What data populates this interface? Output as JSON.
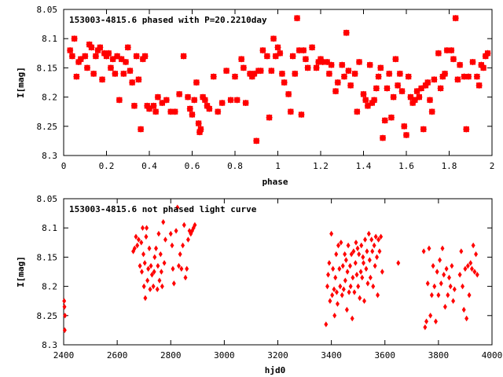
{
  "chart_data": [
    {
      "type": "scatter",
      "title": "153003-4815.6 phased with P=20.2210day",
      "xlabel": "phase",
      "ylabel": "I[mag]",
      "xlim": [
        0,
        2
      ],
      "ylim": [
        8.05,
        8.3
      ],
      "y_inverted": true,
      "xticks": [
        "0",
        "0.2",
        "0.4",
        "0.6",
        "0.8",
        "1",
        "1.2",
        "1.4",
        "1.6",
        "1.8",
        "2"
      ],
      "yticks": [
        "8.05",
        "8.1",
        "8.15",
        "8.2",
        "8.25",
        "8.3"
      ],
      "marker_color": "#ff0000",
      "grid": false,
      "points": [
        [
          0.03,
          8.12
        ],
        [
          0.04,
          8.13
        ],
        [
          0.05,
          8.1
        ],
        [
          0.06,
          8.165
        ],
        [
          0.07,
          8.14
        ],
        [
          0.08,
          8.135
        ],
        [
          0.1,
          8.13
        ],
        [
          0.11,
          8.15
        ],
        [
          0.12,
          8.11
        ],
        [
          0.13,
          8.115
        ],
        [
          0.14,
          8.16
        ],
        [
          0.15,
          8.13
        ],
        [
          0.16,
          8.12
        ],
        [
          0.17,
          8.115
        ],
        [
          0.18,
          8.17
        ],
        [
          0.19,
          8.125
        ],
        [
          0.2,
          8.13
        ],
        [
          0.21,
          8.125
        ],
        [
          0.22,
          8.15
        ],
        [
          0.23,
          8.135
        ],
        [
          0.24,
          8.16
        ],
        [
          0.25,
          8.13
        ],
        [
          0.26,
          8.205
        ],
        [
          0.27,
          8.135
        ],
        [
          0.28,
          8.16
        ],
        [
          0.29,
          8.14
        ],
        [
          0.3,
          8.115
        ],
        [
          0.31,
          8.155
        ],
        [
          0.32,
          8.175
        ],
        [
          0.33,
          8.215
        ],
        [
          0.34,
          8.13
        ],
        [
          0.35,
          8.17
        ],
        [
          0.36,
          8.255
        ],
        [
          0.37,
          8.135
        ],
        [
          0.38,
          8.13
        ],
        [
          0.39,
          8.215
        ],
        [
          0.4,
          8.22
        ],
        [
          0.42,
          8.215
        ],
        [
          0.43,
          8.225
        ],
        [
          0.44,
          8.2
        ],
        [
          0.46,
          8.21
        ],
        [
          0.48,
          8.205
        ],
        [
          0.5,
          8.225
        ],
        [
          0.52,
          8.225
        ],
        [
          0.54,
          8.195
        ],
        [
          0.56,
          8.13
        ],
        [
          0.58,
          8.2
        ],
        [
          0.59,
          8.22
        ],
        [
          0.6,
          8.23
        ],
        [
          0.61,
          8.205
        ],
        [
          0.62,
          8.175
        ],
        [
          0.63,
          8.245
        ],
        [
          0.635,
          8.26
        ],
        [
          0.64,
          8.255
        ],
        [
          0.65,
          8.2
        ],
        [
          0.66,
          8.205
        ],
        [
          0.67,
          8.215
        ],
        [
          0.68,
          8.22
        ],
        [
          0.7,
          8.165
        ],
        [
          0.72,
          8.225
        ],
        [
          0.74,
          8.21
        ],
        [
          0.76,
          8.155
        ],
        [
          0.78,
          8.205
        ],
        [
          0.8,
          8.165
        ],
        [
          0.81,
          8.205
        ],
        [
          0.83,
          8.135
        ],
        [
          0.84,
          8.15
        ],
        [
          0.85,
          8.21
        ],
        [
          0.87,
          8.16
        ],
        [
          0.88,
          8.165
        ],
        [
          0.89,
          8.16
        ],
        [
          0.9,
          8.275
        ],
        [
          0.91,
          8.155
        ],
        [
          0.92,
          8.155
        ],
        [
          0.93,
          8.12
        ],
        [
          0.95,
          8.13
        ],
        [
          0.96,
          8.235
        ],
        [
          0.97,
          8.155
        ],
        [
          0.98,
          8.1
        ],
        [
          0.99,
          8.13
        ],
        [
          1.0,
          8.115
        ],
        [
          1.01,
          8.125
        ],
        [
          1.02,
          8.16
        ],
        [
          1.03,
          8.175
        ],
        [
          1.05,
          8.195
        ],
        [
          1.06,
          8.225
        ],
        [
          1.07,
          8.13
        ],
        [
          1.08,
          8.16
        ],
        [
          1.09,
          8.065
        ],
        [
          1.1,
          8.12
        ],
        [
          1.11,
          8.23
        ],
        [
          1.12,
          8.12
        ],
        [
          1.13,
          8.135
        ],
        [
          1.14,
          8.15
        ],
        [
          1.16,
          8.115
        ],
        [
          1.18,
          8.15
        ],
        [
          1.19,
          8.14
        ],
        [
          1.2,
          8.135
        ],
        [
          1.21,
          8.14
        ],
        [
          1.23,
          8.14
        ],
        [
          1.24,
          8.16
        ],
        [
          1.25,
          8.145
        ],
        [
          1.27,
          8.19
        ],
        [
          1.28,
          8.175
        ],
        [
          1.3,
          8.145
        ],
        [
          1.31,
          8.165
        ],
        [
          1.32,
          8.09
        ],
        [
          1.33,
          8.155
        ],
        [
          1.34,
          8.18
        ],
        [
          1.36,
          8.16
        ],
        [
          1.37,
          8.225
        ],
        [
          1.38,
          8.14
        ],
        [
          1.4,
          8.195
        ],
        [
          1.41,
          8.205
        ],
        [
          1.42,
          8.215
        ],
        [
          1.43,
          8.145
        ],
        [
          1.44,
          8.21
        ],
        [
          1.45,
          8.205
        ],
        [
          1.46,
          8.185
        ],
        [
          1.47,
          8.165
        ],
        [
          1.48,
          8.15
        ],
        [
          1.49,
          8.27
        ],
        [
          1.5,
          8.24
        ],
        [
          1.51,
          8.185
        ],
        [
          1.52,
          8.16
        ],
        [
          1.53,
          8.235
        ],
        [
          1.54,
          8.2
        ],
        [
          1.55,
          8.135
        ],
        [
          1.56,
          8.18
        ],
        [
          1.57,
          8.16
        ],
        [
          1.58,
          8.19
        ],
        [
          1.59,
          8.25
        ],
        [
          1.6,
          8.265
        ],
        [
          1.61,
          8.165
        ],
        [
          1.62,
          8.2
        ],
        [
          1.63,
          8.21
        ],
        [
          1.64,
          8.205
        ],
        [
          1.65,
          8.19
        ],
        [
          1.66,
          8.2
        ],
        [
          1.67,
          8.185
        ],
        [
          1.68,
          8.255
        ],
        [
          1.69,
          8.18
        ],
        [
          1.7,
          8.175
        ],
        [
          1.71,
          8.205
        ],
        [
          1.72,
          8.225
        ],
        [
          1.73,
          8.17
        ],
        [
          1.75,
          8.125
        ],
        [
          1.76,
          8.185
        ],
        [
          1.77,
          8.165
        ],
        [
          1.78,
          8.16
        ],
        [
          1.79,
          8.12
        ],
        [
          1.81,
          8.12
        ],
        [
          1.82,
          8.135
        ],
        [
          1.83,
          8.065
        ],
        [
          1.84,
          8.17
        ],
        [
          1.85,
          8.145
        ],
        [
          1.87,
          8.165
        ],
        [
          1.88,
          8.255
        ],
        [
          1.89,
          8.165
        ],
        [
          1.91,
          8.14
        ],
        [
          1.93,
          8.165
        ],
        [
          1.94,
          8.18
        ],
        [
          1.95,
          8.145
        ],
        [
          1.96,
          8.15
        ],
        [
          1.97,
          8.13
        ],
        [
          1.98,
          8.125
        ]
      ]
    },
    {
      "type": "scatter",
      "title": "153003-4815.6 not phased light curve",
      "xlabel": "hjd0",
      "ylabel": "I[mag]",
      "xlim": [
        2400,
        4000
      ],
      "ylim": [
        8.05,
        8.3
      ],
      "y_inverted": true,
      "xticks": [
        "2400",
        "2600",
        "2800",
        "3000",
        "3200",
        "3400",
        "3600",
        "3800",
        "4000"
      ],
      "yticks": [
        "8.05",
        "8.1",
        "8.15",
        "8.2",
        "8.25",
        "8.3"
      ],
      "marker_color": "#ff0000",
      "grid": false,
      "points": [
        [
          2402,
          8.225
        ],
        [
          2403,
          8.235
        ],
        [
          2404,
          8.275
        ],
        [
          2405,
          8.25
        ],
        [
          2660,
          8.14
        ],
        [
          2665,
          8.135
        ],
        [
          2670,
          8.115
        ],
        [
          2675,
          8.13
        ],
        [
          2680,
          8.12
        ],
        [
          2685,
          8.165
        ],
        [
          2690,
          8.125
        ],
        [
          2692,
          8.175
        ],
        [
          2695,
          8.1
        ],
        [
          2698,
          8.145
        ],
        [
          2700,
          8.2
        ],
        [
          2703,
          8.16
        ],
        [
          2705,
          8.22
        ],
        [
          2708,
          8.115
        ],
        [
          2710,
          8.1
        ],
        [
          2713,
          8.19
        ],
        [
          2716,
          8.17
        ],
        [
          2720,
          8.135
        ],
        [
          2723,
          8.205
        ],
        [
          2726,
          8.165
        ],
        [
          2730,
          8.18
        ],
        [
          2735,
          8.2
        ],
        [
          2738,
          8.175
        ],
        [
          2740,
          8.15
        ],
        [
          2745,
          8.135
        ],
        [
          2750,
          8.205
        ],
        [
          2752,
          8.165
        ],
        [
          2755,
          8.11
        ],
        [
          2758,
          8.19
        ],
        [
          2762,
          8.145
        ],
        [
          2765,
          8.175
        ],
        [
          2768,
          8.2
        ],
        [
          2772,
          8.09
        ],
        [
          2776,
          8.16
        ],
        [
          2780,
          8.12
        ],
        [
          2800,
          8.11
        ],
        [
          2805,
          8.13
        ],
        [
          2808,
          8.17
        ],
        [
          2812,
          8.195
        ],
        [
          2820,
          8.105
        ],
        [
          2825,
          8.065
        ],
        [
          2830,
          8.165
        ],
        [
          2835,
          8.145
        ],
        [
          2840,
          8.17
        ],
        [
          2845,
          8.13
        ],
        [
          2850,
          8.095
        ],
        [
          2855,
          8.185
        ],
        [
          2860,
          8.17
        ],
        [
          2865,
          8.12
        ],
        [
          2870,
          8.105
        ],
        [
          2875,
          8.11
        ],
        [
          2880,
          8.105
        ],
        [
          2885,
          8.1
        ],
        [
          2890,
          8.095
        ],
        [
          3380,
          8.265
        ],
        [
          3385,
          8.2
        ],
        [
          3388,
          8.18
        ],
        [
          3392,
          8.16
        ],
        [
          3395,
          8.225
        ],
        [
          3400,
          8.11
        ],
        [
          3403,
          8.215
        ],
        [
          3406,
          8.17
        ],
        [
          3410,
          8.205
        ],
        [
          3412,
          8.25
        ],
        [
          3415,
          8.185
        ],
        [
          3418,
          8.145
        ],
        [
          3420,
          8.21
        ],
        [
          3423,
          8.23
        ],
        [
          3426,
          8.13
        ],
        [
          3430,
          8.17
        ],
        [
          3433,
          8.2
        ],
        [
          3436,
          8.125
        ],
        [
          3440,
          8.215
        ],
        [
          3443,
          8.165
        ],
        [
          3446,
          8.205
        ],
        [
          3450,
          8.145
        ],
        [
          3452,
          8.19
        ],
        [
          3455,
          8.155
        ],
        [
          3458,
          8.24
        ],
        [
          3460,
          8.175
        ],
        [
          3463,
          8.13
        ],
        [
          3466,
          8.21
        ],
        [
          3470,
          8.165
        ],
        [
          3472,
          8.2
        ],
        [
          3475,
          8.145
        ],
        [
          3478,
          8.255
        ],
        [
          3480,
          8.185
        ],
        [
          3483,
          8.14
        ],
        [
          3486,
          8.21
        ],
        [
          3490,
          8.16
        ],
        [
          3492,
          8.125
        ],
        [
          3495,
          8.18
        ],
        [
          3498,
          8.135
        ],
        [
          3500,
          8.2
        ],
        [
          3503,
          8.145
        ],
        [
          3506,
          8.22
        ],
        [
          3510,
          8.175
        ],
        [
          3512,
          8.13
        ],
        [
          3515,
          8.185
        ],
        [
          3518,
          8.15
        ],
        [
          3520,
          8.16
        ],
        [
          3523,
          8.225
        ],
        [
          3526,
          8.12
        ],
        [
          3530,
          8.17
        ],
        [
          3533,
          8.14
        ],
        [
          3536,
          8.195
        ],
        [
          3540,
          8.11
        ],
        [
          3543,
          8.155
        ],
        [
          3546,
          8.185
        ],
        [
          3550,
          8.12
        ],
        [
          3553,
          8.14
        ],
        [
          3556,
          8.2
        ],
        [
          3560,
          8.13
        ],
        [
          3563,
          8.165
        ],
        [
          3566,
          8.115
        ],
        [
          3570,
          8.15
        ],
        [
          3573,
          8.215
        ],
        [
          3576,
          8.12
        ],
        [
          3580,
          8.14
        ],
        [
          3585,
          8.115
        ],
        [
          3590,
          8.175
        ],
        [
          3650,
          8.16
        ],
        [
          3745,
          8.14
        ],
        [
          3750,
          8.27
        ],
        [
          3755,
          8.26
        ],
        [
          3760,
          8.195
        ],
        [
          3765,
          8.135
        ],
        [
          3770,
          8.25
        ],
        [
          3775,
          8.215
        ],
        [
          3780,
          8.165
        ],
        [
          3785,
          8.2
        ],
        [
          3790,
          8.26
        ],
        [
          3795,
          8.175
        ],
        [
          3800,
          8.215
        ],
        [
          3805,
          8.155
        ],
        [
          3810,
          8.195
        ],
        [
          3815,
          8.135
        ],
        [
          3820,
          8.18
        ],
        [
          3825,
          8.235
        ],
        [
          3830,
          8.17
        ],
        [
          3835,
          8.215
        ],
        [
          3840,
          8.185
        ],
        [
          3845,
          8.2
        ],
        [
          3850,
          8.165
        ],
        [
          3855,
          8.225
        ],
        [
          3860,
          8.205
        ],
        [
          3880,
          8.18
        ],
        [
          3885,
          8.14
        ],
        [
          3890,
          8.2
        ],
        [
          3895,
          8.24
        ],
        [
          3900,
          8.17
        ],
        [
          3905,
          8.255
        ],
        [
          3910,
          8.165
        ],
        [
          3915,
          8.215
        ],
        [
          3920,
          8.16
        ],
        [
          3925,
          8.17
        ],
        [
          3930,
          8.13
        ],
        [
          3935,
          8.175
        ],
        [
          3940,
          8.145
        ],
        [
          3945,
          8.18
        ]
      ]
    }
  ]
}
